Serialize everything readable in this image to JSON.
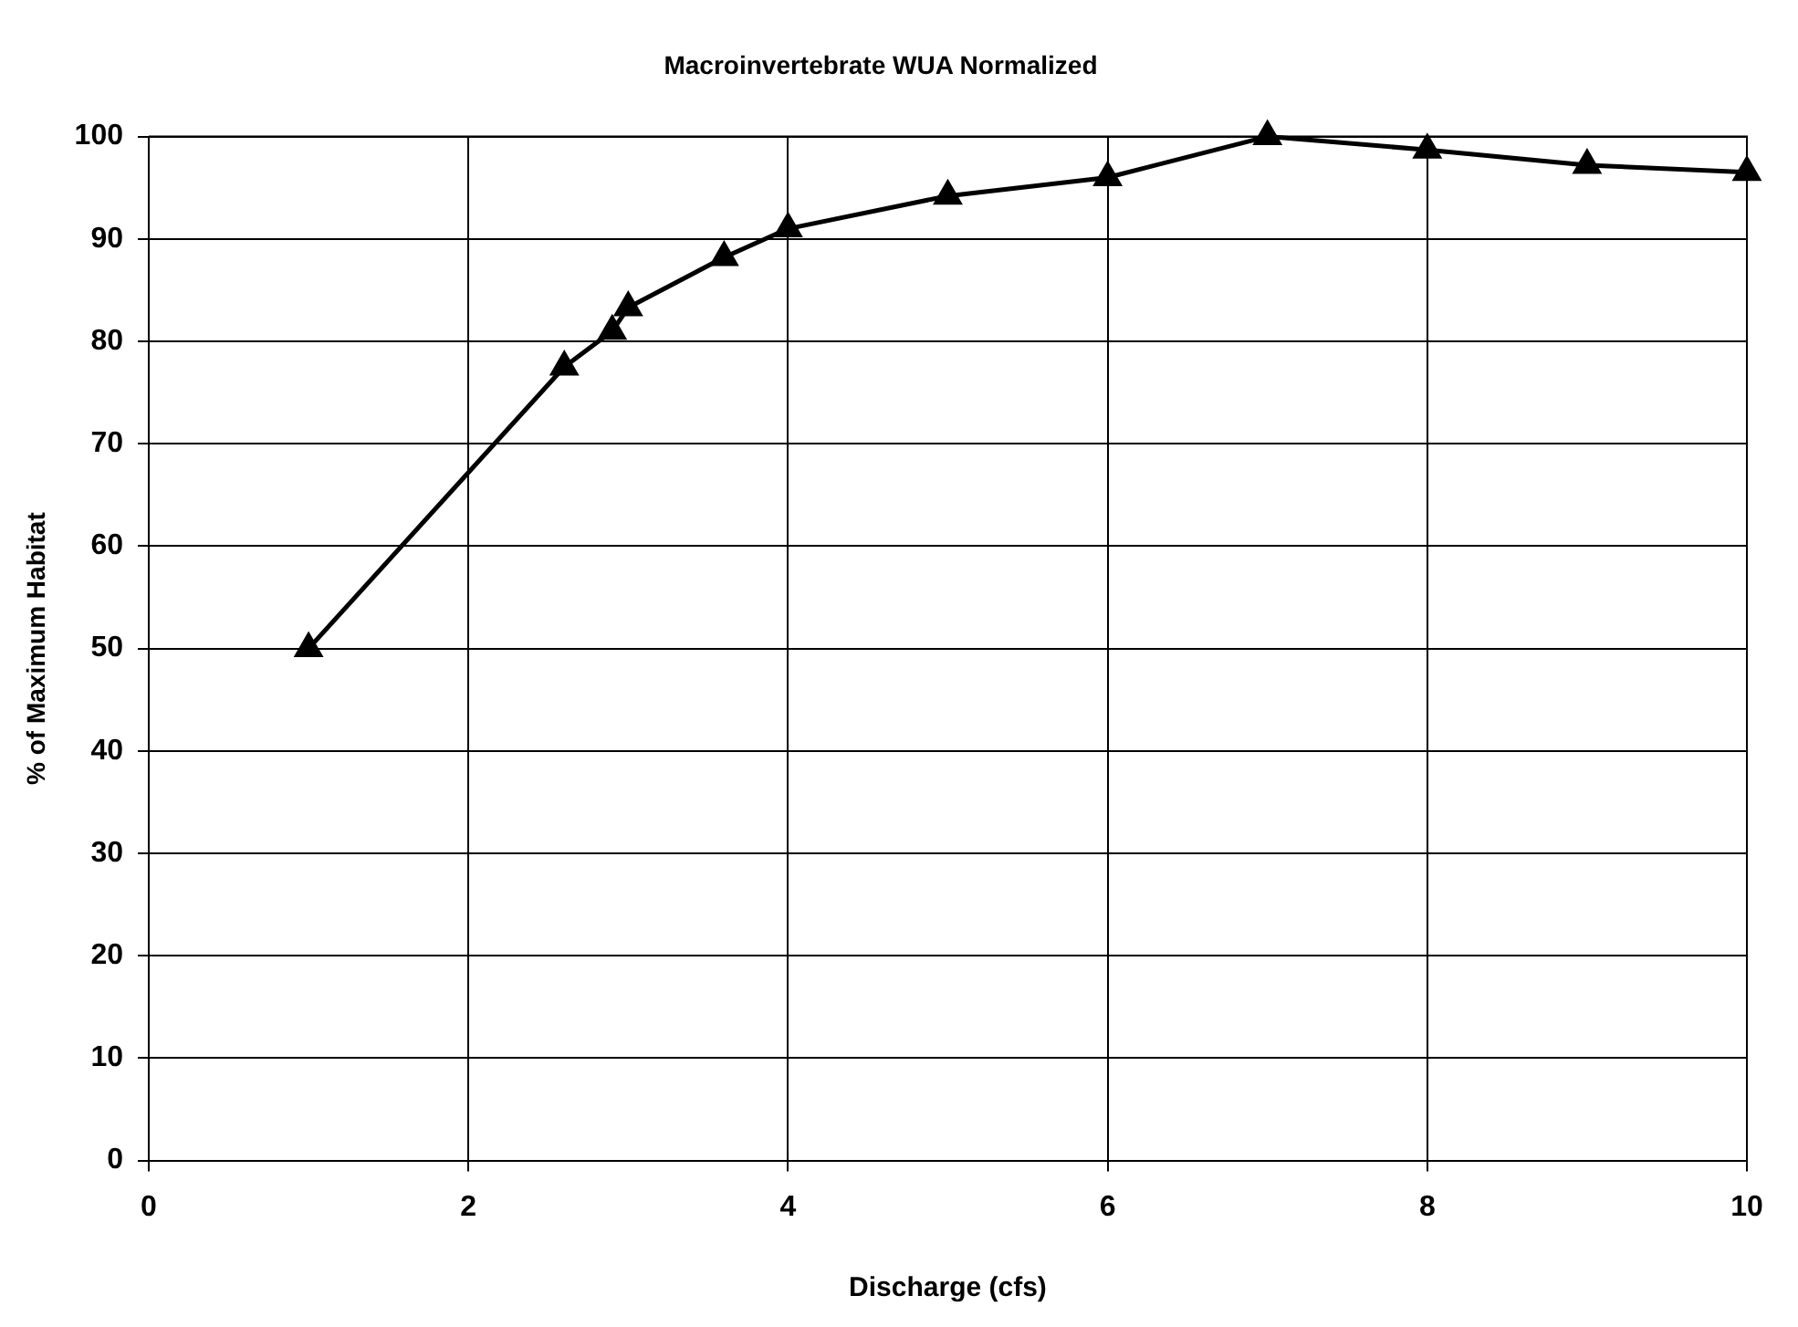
{
  "chart_data": {
    "type": "line",
    "title": "Macroinvertebrate WUA Normalized",
    "xlabel": "Discharge (cfs)",
    "ylabel": "% of Maximum Habitat",
    "x": [
      1,
      2.6,
      2.9,
      3,
      3.6,
      4,
      5,
      6,
      7,
      8,
      9,
      10
    ],
    "series": [
      {
        "color": "#000000",
        "values": [
          50,
          77.5,
          81,
          83.3,
          88.2,
          91,
          94.2,
          96,
          100,
          98.7,
          97.2,
          96.5
        ]
      }
    ],
    "xlim": [
      0,
      10
    ],
    "xticks": [
      0,
      2,
      4,
      6,
      8,
      10
    ],
    "ylim": [
      0,
      100
    ],
    "yticks": [
      0,
      10,
      20,
      30,
      40,
      50,
      60,
      70,
      80,
      90,
      100
    ],
    "grid": true,
    "legend": false,
    "marker": "triangle",
    "line_style": "solid"
  }
}
